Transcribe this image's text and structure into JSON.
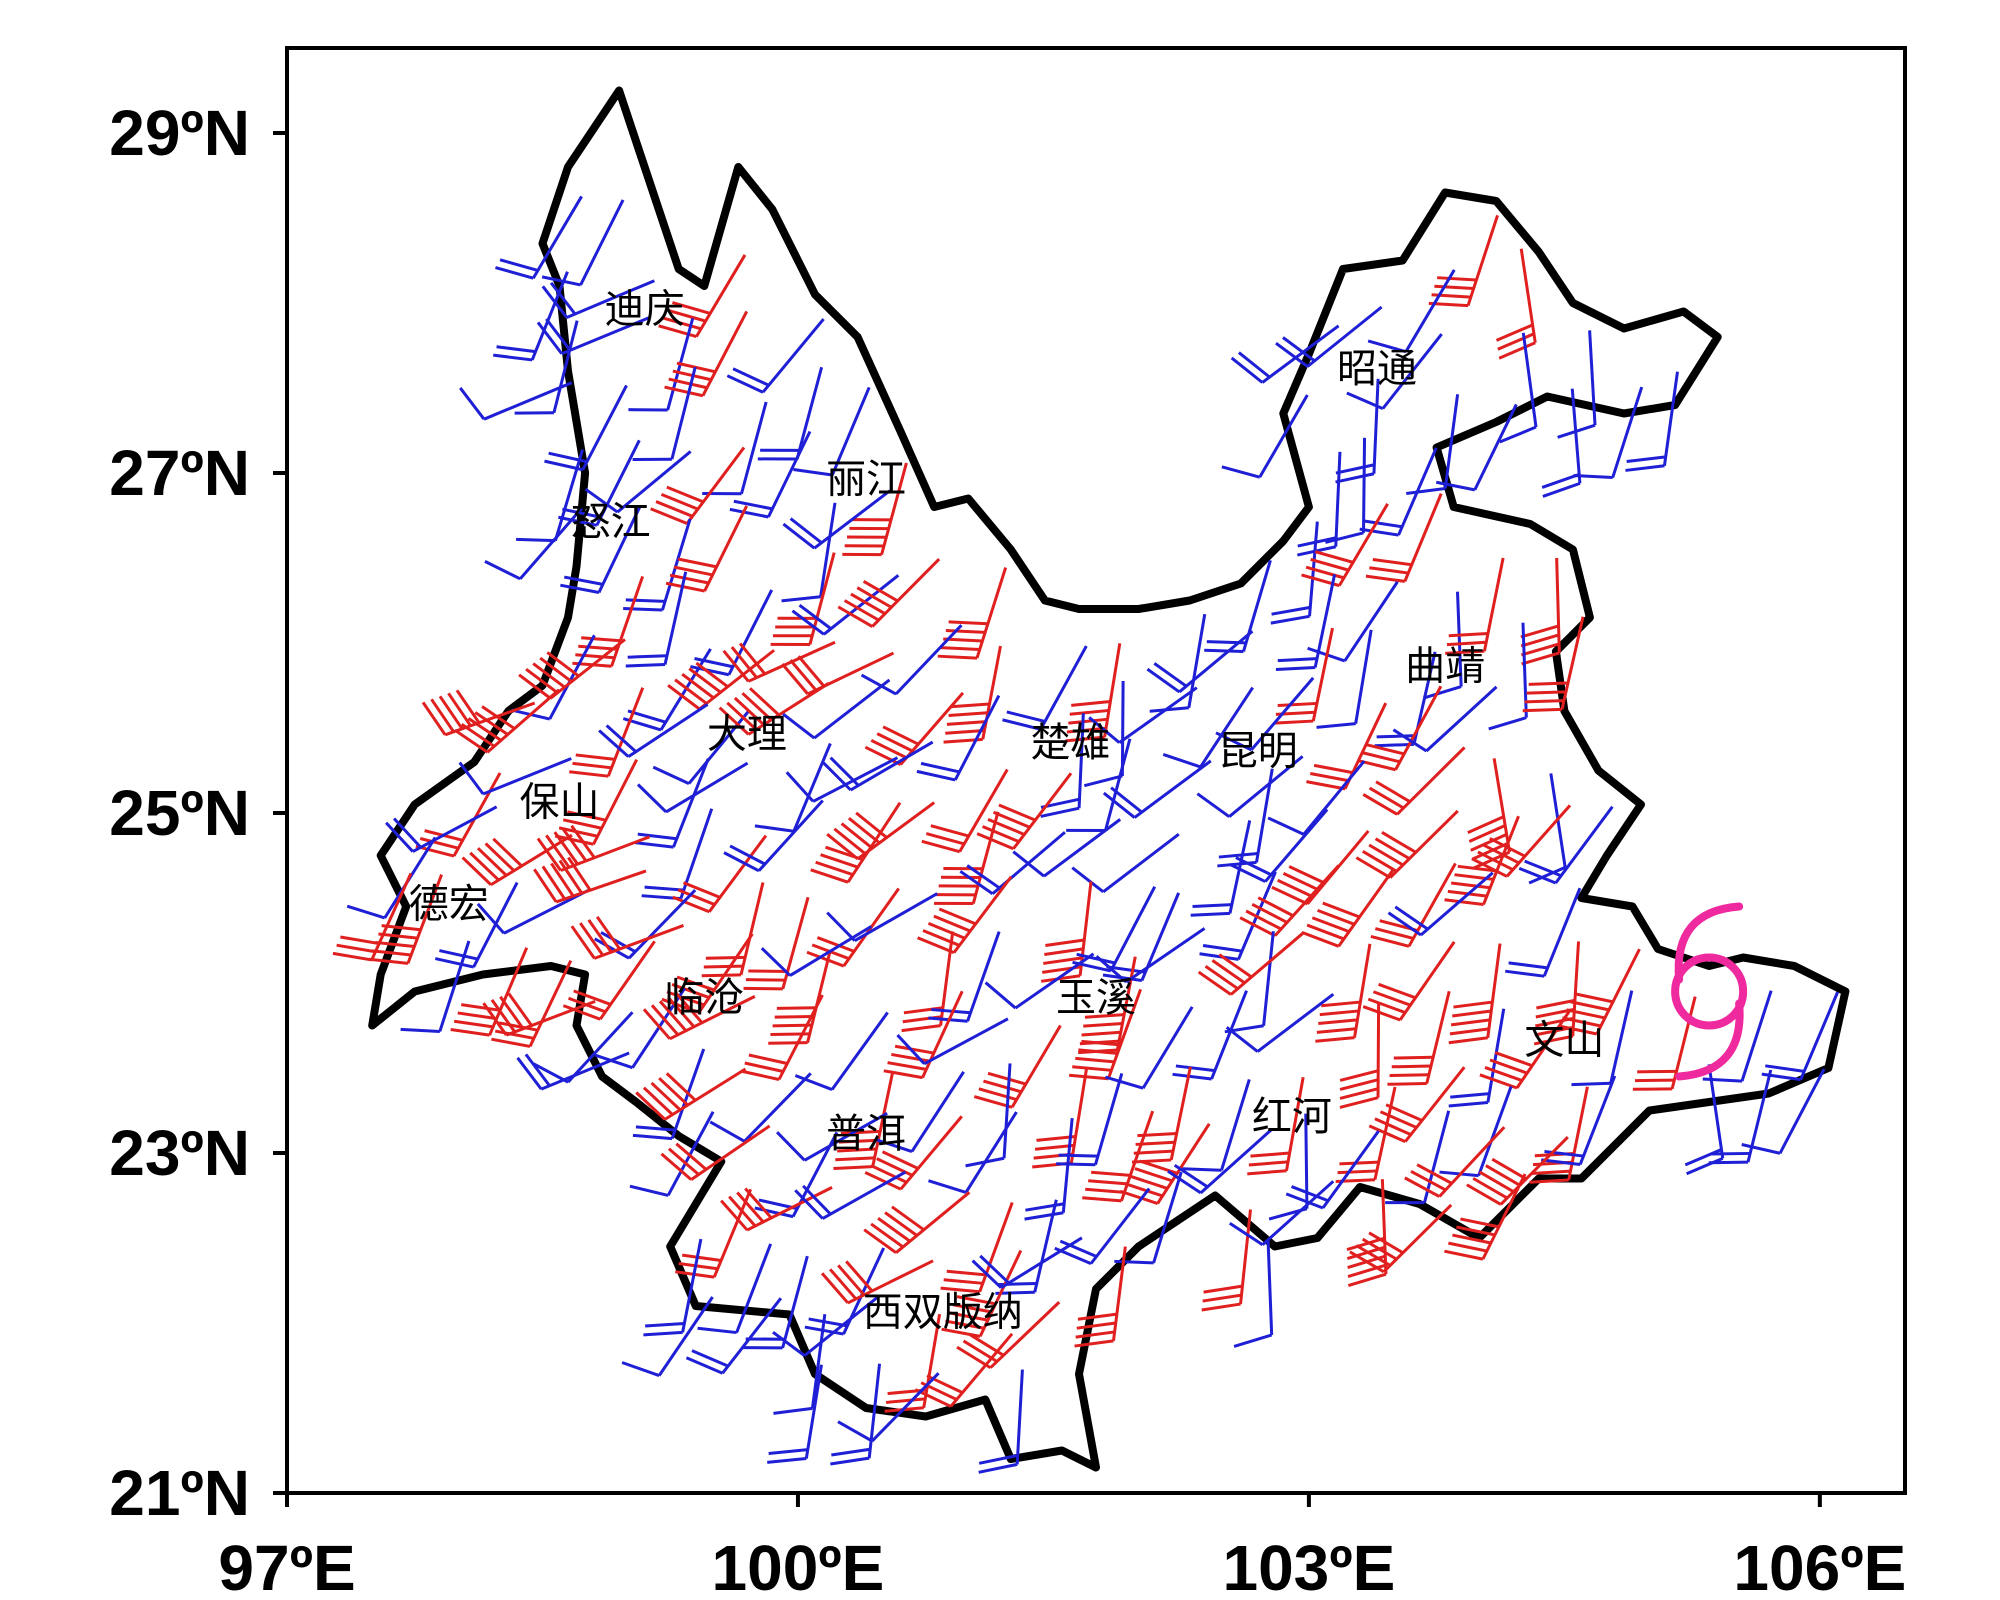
{
  "map": {
    "lon_ticks": [
      "97ºE",
      "100ºE",
      "103ºE",
      "106ºE"
    ],
    "lat_ticks": [
      "21ºN",
      "23ºN",
      "25ºN",
      "27ºN",
      "29ºN"
    ],
    "lon_range": [
      97,
      106.5
    ],
    "lat_range": [
      21,
      29.5
    ],
    "colors": {
      "frame": "#000000",
      "boundary": "#000000",
      "wind_weak": "#1f1fd6",
      "wind_strong": "#e01f1f",
      "typhoon": "#ee2a9e"
    },
    "typhoon_symbol": "typhoon-icon",
    "cities": [
      {
        "name": "迪庆",
        "lon": 99.1,
        "lat": 27.95
      },
      {
        "name": "丽江",
        "lon": 100.4,
        "lat": 26.95
      },
      {
        "name": "怒江",
        "lon": 98.9,
        "lat": 26.7
      },
      {
        "name": "昭通",
        "lon": 103.4,
        "lat": 27.6
      },
      {
        "name": "曲靖",
        "lon": 103.8,
        "lat": 25.85
      },
      {
        "name": "大理",
        "lon": 99.7,
        "lat": 25.45
      },
      {
        "name": "楚雄",
        "lon": 101.6,
        "lat": 25.4
      },
      {
        "name": "昆明",
        "lon": 102.7,
        "lat": 25.35
      },
      {
        "name": "保山",
        "lon": 98.6,
        "lat": 25.05
      },
      {
        "name": "德宏",
        "lon": 97.95,
        "lat": 24.45
      },
      {
        "name": "临沧",
        "lon": 99.45,
        "lat": 23.9
      },
      {
        "name": "玉溪",
        "lon": 101.75,
        "lat": 23.9
      },
      {
        "name": "文山",
        "lon": 104.5,
        "lat": 23.65
      },
      {
        "name": "红河",
        "lon": 102.9,
        "lat": 23.2
      },
      {
        "name": "普洱",
        "lon": 100.4,
        "lat": 23.1
      },
      {
        "name": "西双版纳",
        "lon": 100.85,
        "lat": 22.05
      }
    ],
    "typhoon_position": {
      "lon": 105.35,
      "lat": 23.95
    }
  }
}
